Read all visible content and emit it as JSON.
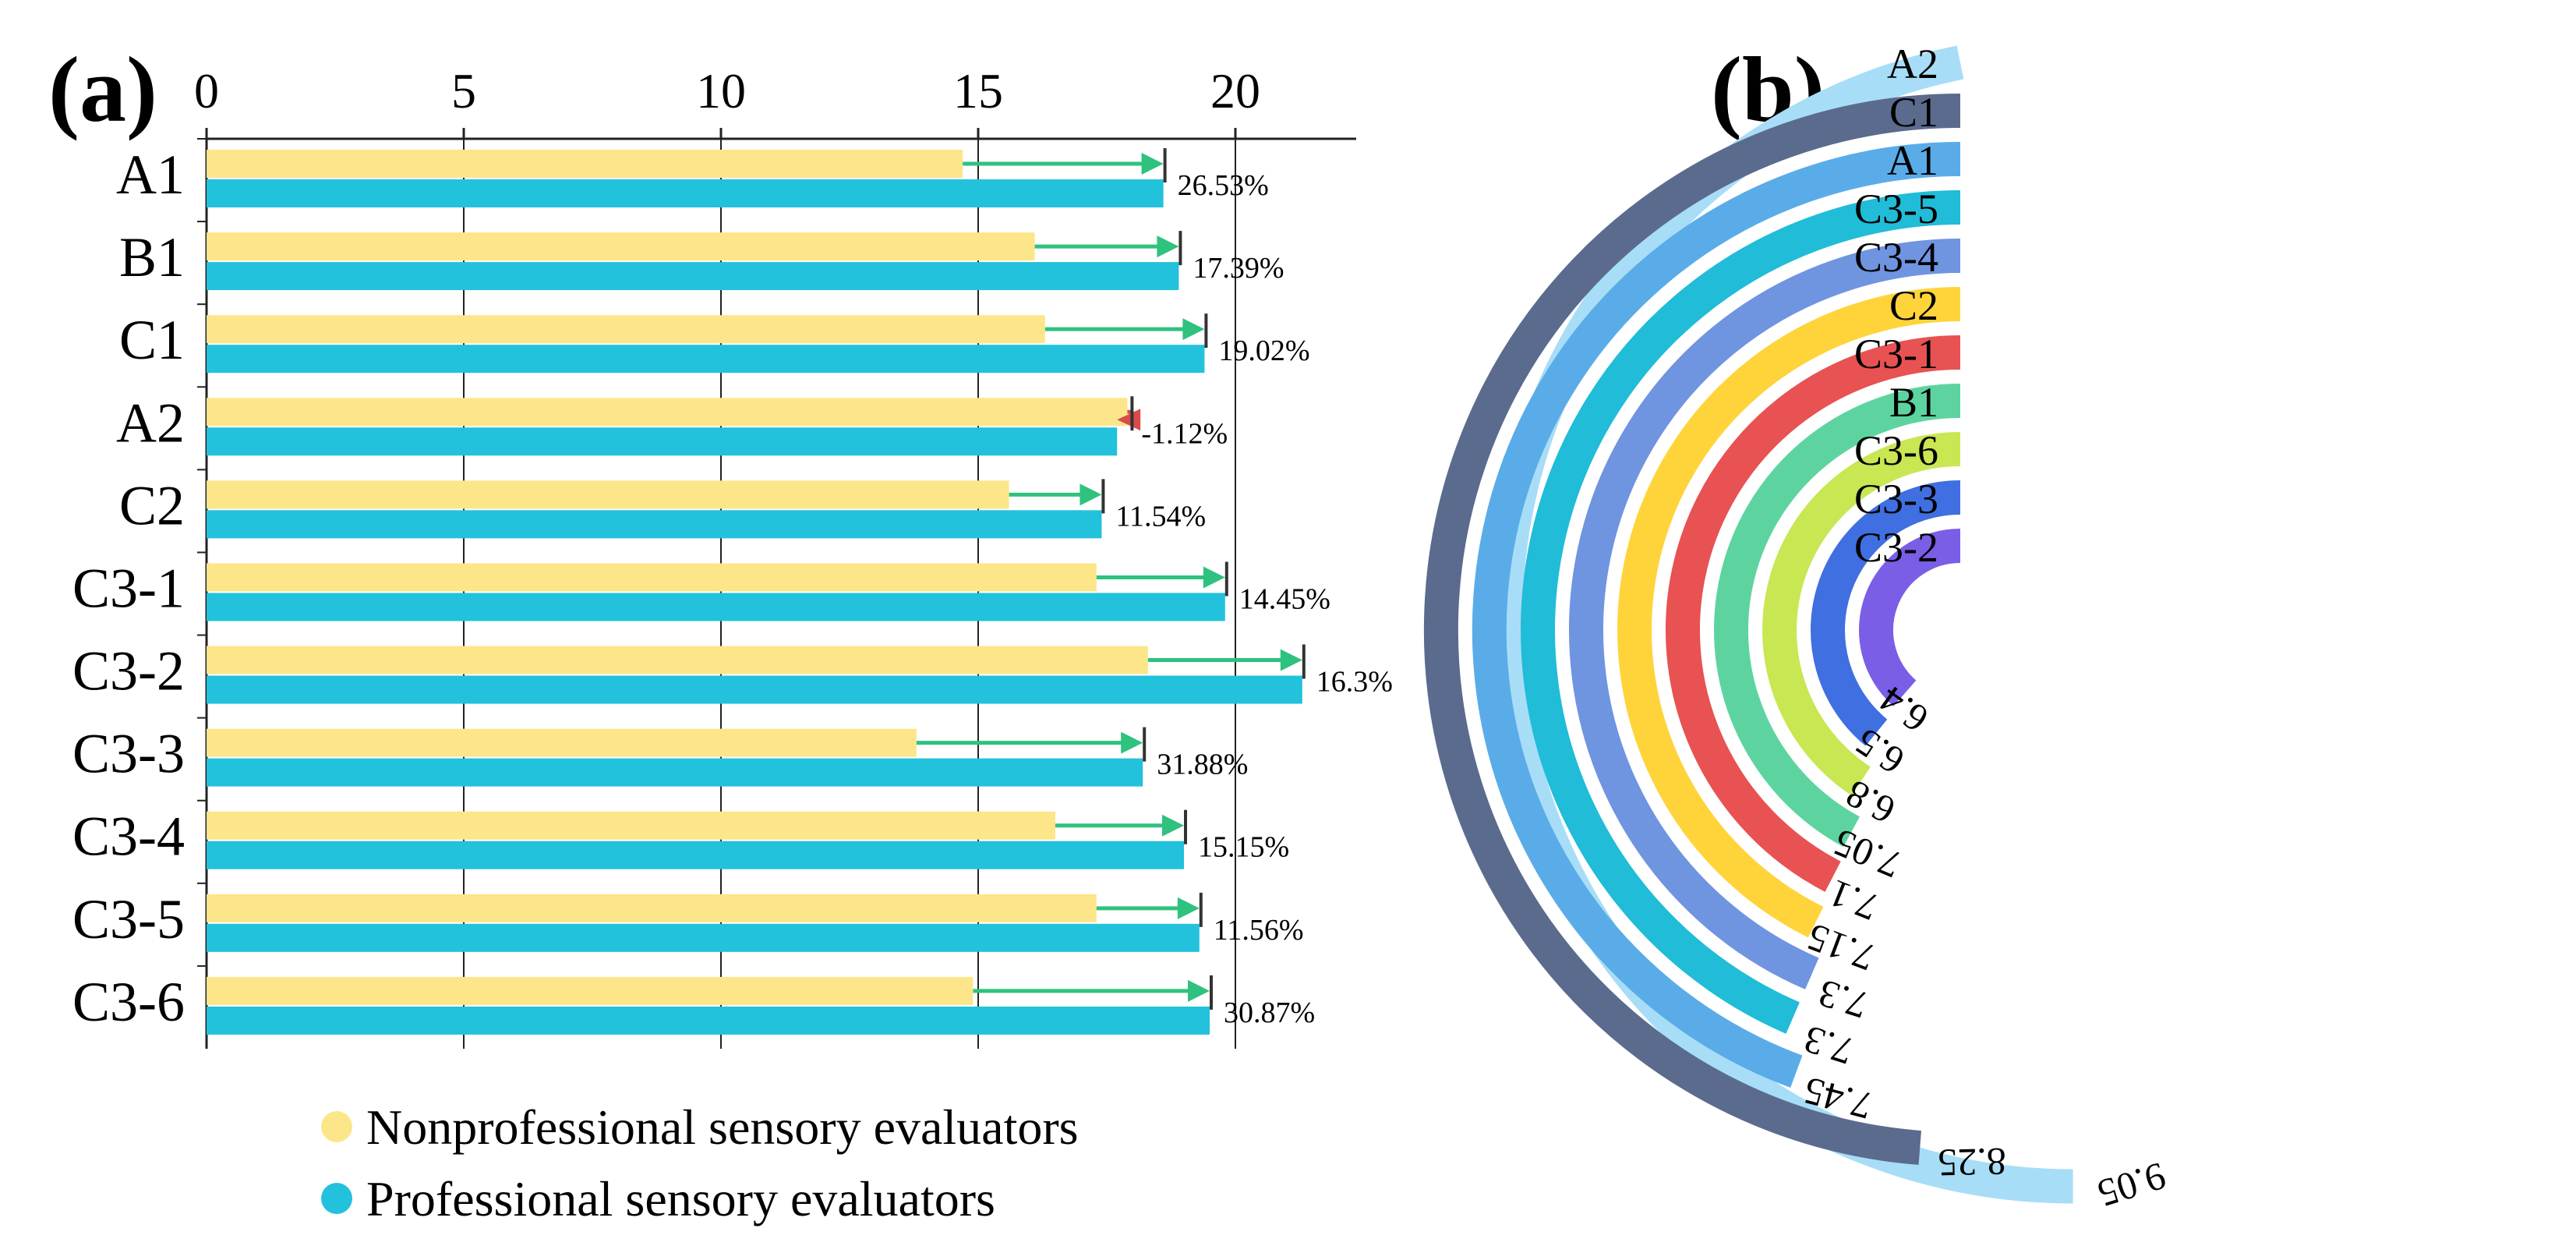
{
  "chart_data": [
    {
      "panel": "(a)",
      "type": "bar",
      "orientation": "horizontal",
      "x_axis_position": "top",
      "xlim": [
        0,
        22
      ],
      "xticks": [
        "0",
        "5",
        "10",
        "15",
        "20"
      ],
      "categories": [
        "A1",
        "B1",
        "C1",
        "A2",
        "C2",
        "C3-1",
        "C3-2",
        "C3-3",
        "C3-4",
        "C3-5",
        "C3-6"
      ],
      "series": [
        {
          "name": "Nonprofessional sensory evaluators",
          "color": "#fde68a",
          "values": [
            14.7,
            16.1,
            16.3,
            17.9,
            15.6,
            17.3,
            18.3,
            13.8,
            16.5,
            17.3,
            14.9
          ]
        },
        {
          "name": "Professional sensory evaluators",
          "color": "#22c1dc",
          "values": [
            18.6,
            18.9,
            19.4,
            17.7,
            17.4,
            19.8,
            21.3,
            18.2,
            19.0,
            19.3,
            19.5
          ]
        }
      ],
      "change_labels": [
        "26.53%",
        "17.39%",
        "19.02%",
        "-1.12%",
        "11.54%",
        "14.45%",
        "16.3%",
        "31.88%",
        "15.15%",
        "11.56%",
        "30.87%"
      ],
      "arrow_colors": {
        "increase": "#2ec27e",
        "decrease": "#d94b4b"
      },
      "legend_position": "bottom"
    },
    {
      "panel": "(b)",
      "type": "radial-bar",
      "order_outer_to_inner": [
        "A2",
        "C1",
        "A1",
        "C3-5",
        "C3-4",
        "C2",
        "C3-1",
        "B1",
        "C3-6",
        "C3-3",
        "C3-2"
      ],
      "values": [
        9.05,
        8.25,
        7.45,
        7.3,
        7.3,
        7.15,
        7.1,
        7.05,
        6.8,
        6.5,
        6.4
      ],
      "value_labels": [
        "9.05",
        "8.25",
        "7.45",
        "7.3",
        "7.3",
        "7.15",
        "7.1",
        "7.05",
        "6.8",
        "6.5",
        "6.4"
      ],
      "colors": [
        "#a8ddf7",
        "#5b6b8e",
        "#5aace8",
        "#20bcd8",
        "#6f94e0",
        "#ffd43b",
        "#e85252",
        "#5dd4a0",
        "#c9e653",
        "#3f6fe0",
        "#7a5ee6"
      ],
      "scale_ratio": 0.2
    }
  ],
  "labels": {
    "panel_a": "(a)",
    "panel_b": "(b)"
  }
}
